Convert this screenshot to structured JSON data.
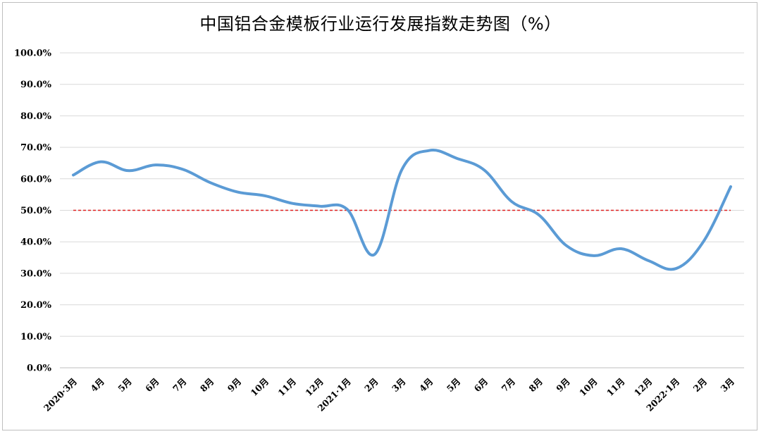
{
  "chart_data": {
    "type": "line",
    "title": "中国铝合金模板行业运行发展指数走势图（%）",
    "categories": [
      "2020·3月",
      "4月",
      "5月",
      "6月",
      "7月",
      "8月",
      "9月",
      "10月",
      "11月",
      "12月",
      "2021·1月",
      "2月",
      "3月",
      "4月",
      "5月",
      "6月",
      "7月",
      "8月",
      "9月",
      "10月",
      "11月",
      "12月",
      "2022·1月",
      "2月",
      "3月"
    ],
    "series": [
      {
        "values": [
          61.2,
          65.4,
          62.6,
          64.4,
          63.0,
          58.8,
          55.8,
          54.6,
          52.2,
          51.3,
          50.3,
          36.0,
          63.0,
          69.0,
          66.5,
          62.8,
          52.8,
          48.5,
          38.8,
          35.6,
          37.8,
          34.0,
          31.5,
          40.0,
          57.5
        ]
      }
    ],
    "ylim": [
      0,
      100
    ],
    "yticks": [
      "0.0%",
      "10.0%",
      "20.0%",
      "30.0%",
      "40.0%",
      "50.0%",
      "60.0%",
      "70.0%",
      "80.0%",
      "90.0%",
      "100.0%"
    ],
    "reference_line": {
      "value": 50,
      "style": "dashed"
    },
    "grid": true,
    "colors": {
      "line": "#5b9bd5",
      "reference": "#e02020",
      "grid": "#d9d9d9"
    }
  }
}
